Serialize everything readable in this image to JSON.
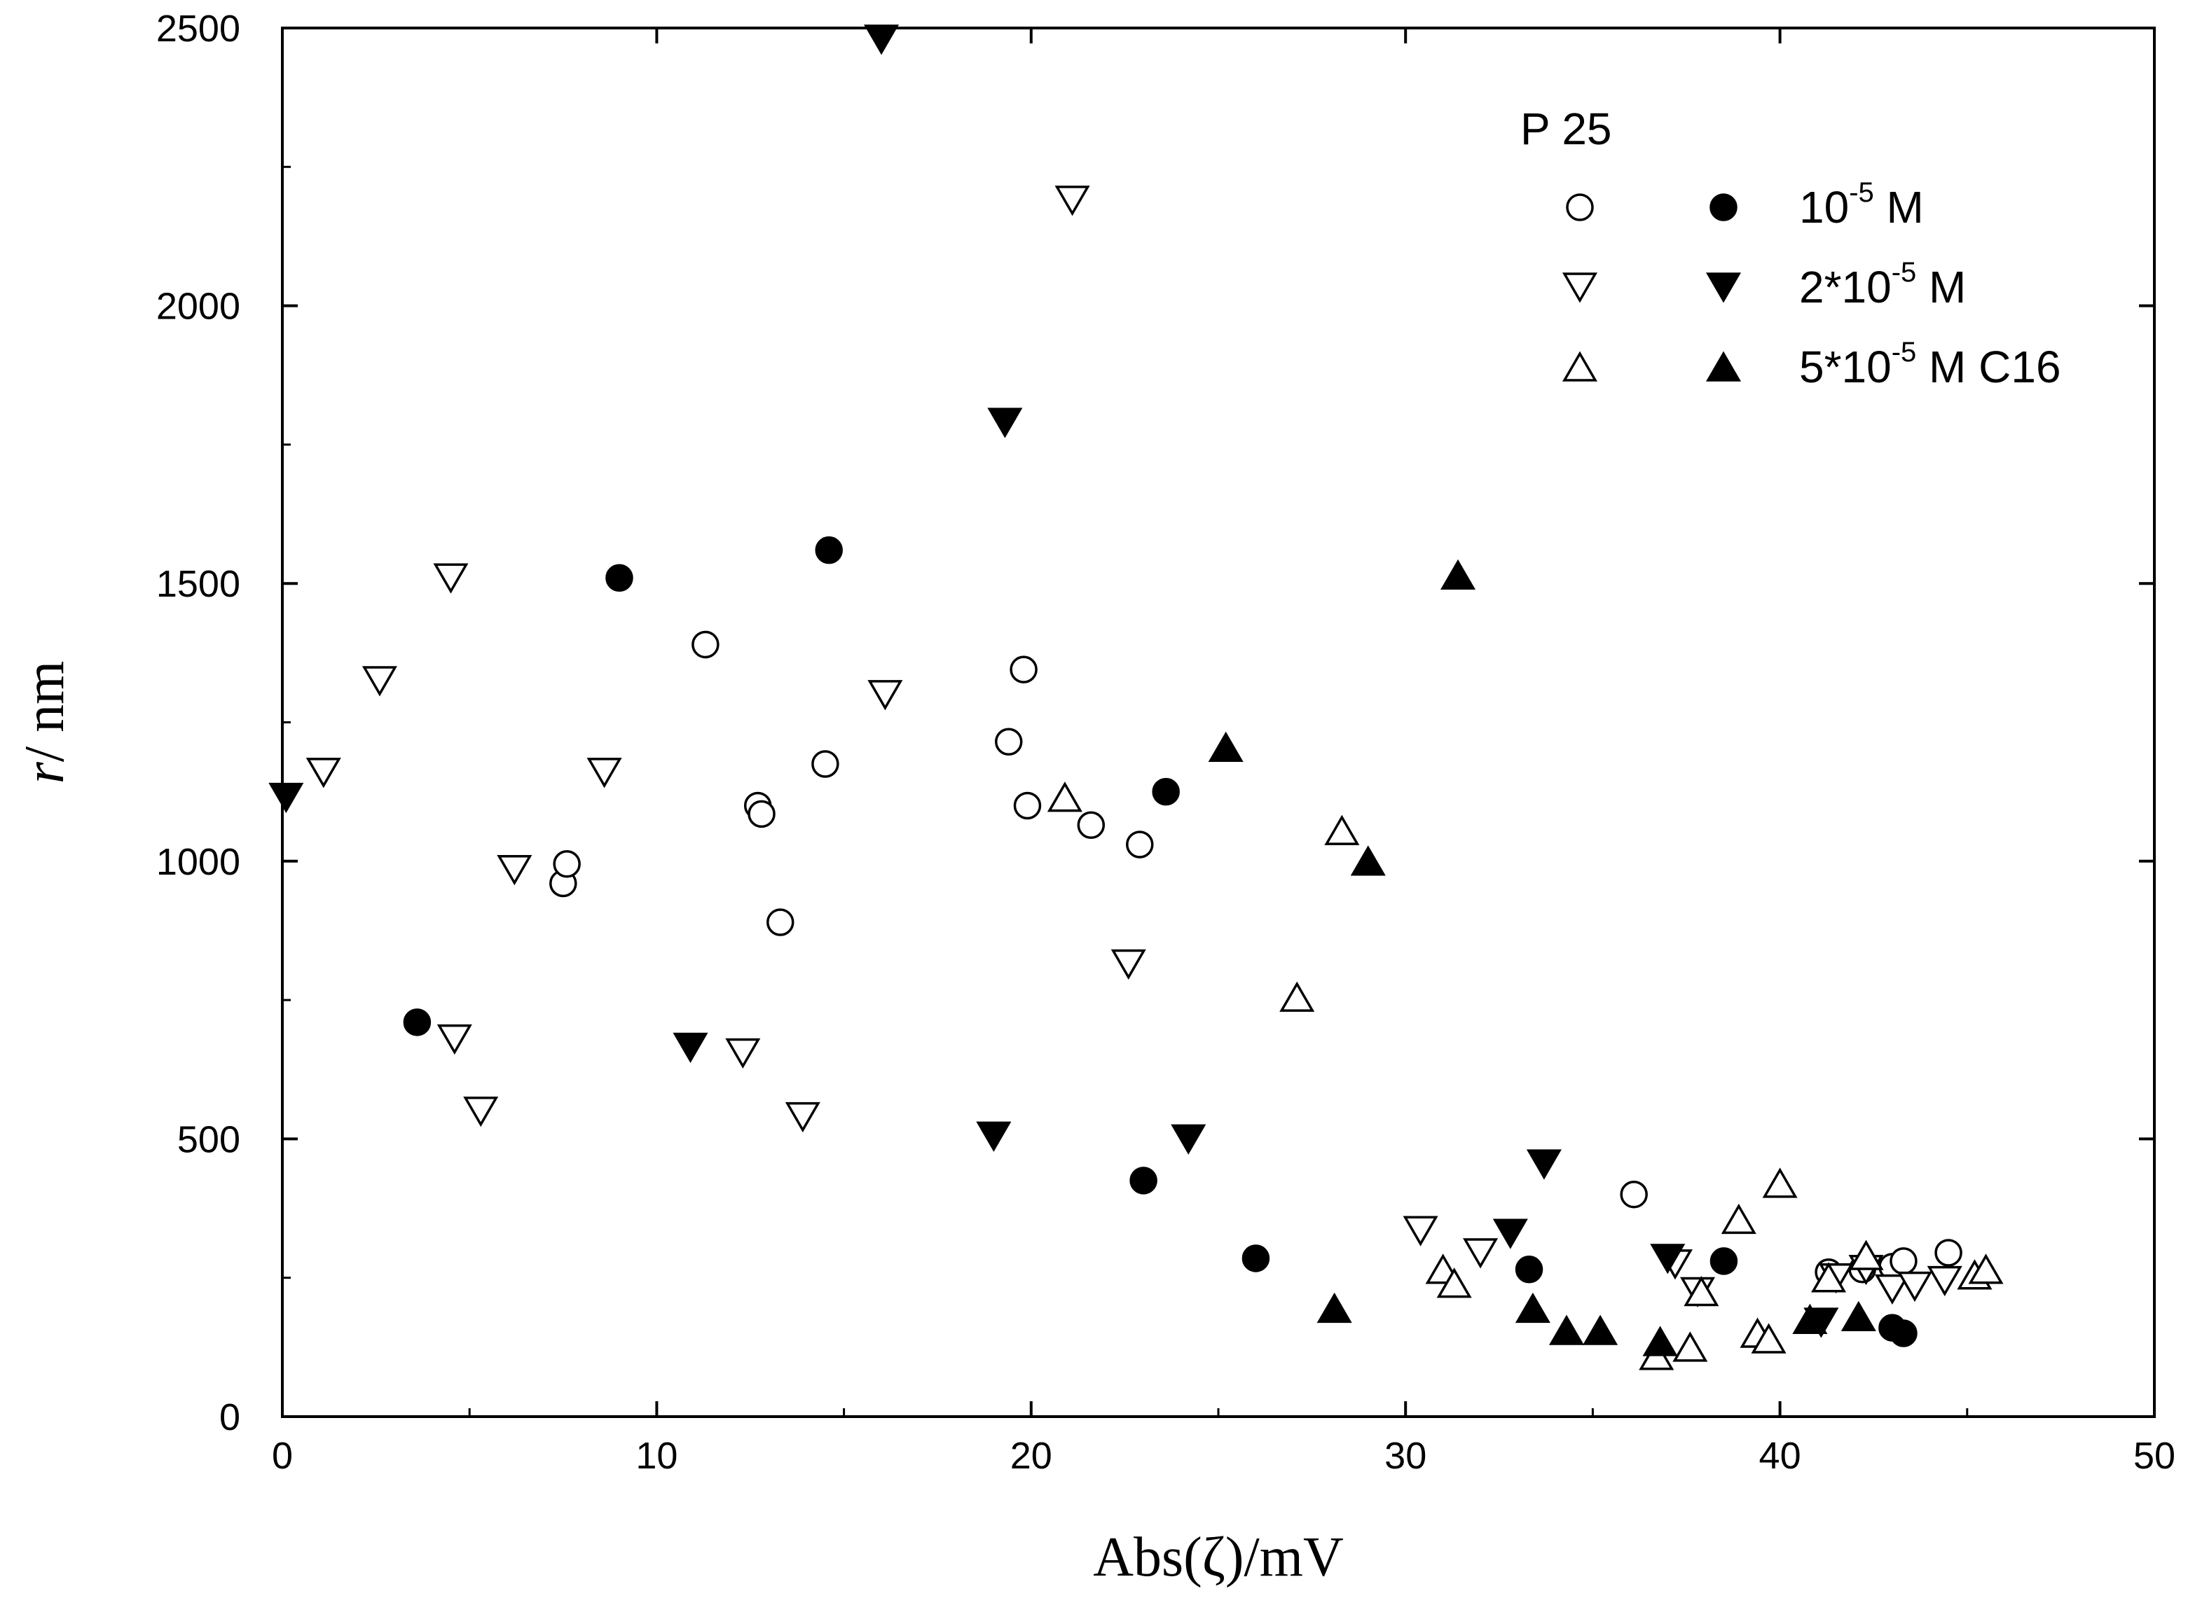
{
  "chart_data": {
    "type": "scatter",
    "title": "",
    "xlabel": "Abs(ζ)/mV",
    "ylabel_italic": "r",
    "ylabel_rest": "/ nm",
    "xlim": [
      0,
      50
    ],
    "ylim": [
      0,
      2500
    ],
    "xticks": [
      0,
      10,
      20,
      30,
      40,
      50
    ],
    "yticks": [
      0,
      500,
      1000,
      1500,
      2000,
      2500
    ],
    "grid": false,
    "legend": {
      "title": "P 25",
      "placement": "top-right",
      "entries": [
        {
          "label_base": "10",
          "label_sup": "-5",
          "label_tail": " M"
        },
        {
          "label_base": "2*10",
          "label_sup": "-5",
          "label_tail": " M"
        },
        {
          "label_base": "5*10",
          "label_sup": "-5",
          "label_tail": " M C16"
        }
      ]
    },
    "series": [
      {
        "name": "10^-5 M open",
        "marker": "circle",
        "filled": false,
        "points": [
          [
            7.5,
            960
          ],
          [
            7.6,
            995
          ],
          [
            11.3,
            1390
          ],
          [
            12.7,
            1100
          ],
          [
            12.8,
            1085
          ],
          [
            13.3,
            890
          ],
          [
            14.5,
            1175
          ],
          [
            19.4,
            1215
          ],
          [
            19.8,
            1345
          ],
          [
            19.9,
            1100
          ],
          [
            21.6,
            1065
          ],
          [
            22.9,
            1030
          ],
          [
            36.1,
            400
          ],
          [
            41.3,
            260
          ],
          [
            42.2,
            265
          ],
          [
            43.0,
            270
          ],
          [
            43.3,
            280
          ],
          [
            44.5,
            295
          ]
        ]
      },
      {
        "name": "10^-5 M filled",
        "marker": "circle",
        "filled": true,
        "points": [
          [
            3.6,
            710
          ],
          [
            9.0,
            1510
          ],
          [
            14.6,
            1560
          ],
          [
            23.0,
            425
          ],
          [
            23.6,
            1125
          ],
          [
            26.0,
            285
          ],
          [
            33.3,
            265
          ],
          [
            38.5,
            280
          ],
          [
            43.0,
            160
          ],
          [
            43.3,
            150
          ]
        ]
      },
      {
        "name": "2*10^-5 M open",
        "marker": "triangle-down",
        "filled": false,
        "points": [
          [
            1.1,
            1160
          ],
          [
            2.6,
            1325
          ],
          [
            4.5,
            1510
          ],
          [
            4.6,
            680
          ],
          [
            5.3,
            550
          ],
          [
            6.2,
            985
          ],
          [
            8.6,
            1160
          ],
          [
            12.3,
            655
          ],
          [
            13.9,
            540
          ],
          [
            16.1,
            1300
          ],
          [
            21.1,
            2190
          ],
          [
            22.6,
            815
          ],
          [
            30.4,
            335
          ],
          [
            32.0,
            295
          ],
          [
            37.2,
            275
          ],
          [
            37.8,
            225
          ],
          [
            41.5,
            250
          ],
          [
            42.3,
            265
          ],
          [
            43.0,
            230
          ],
          [
            43.6,
            235
          ],
          [
            44.4,
            245
          ]
        ]
      },
      {
        "name": "2*10^-5 M filled",
        "marker": "triangle-down",
        "filled": true,
        "points": [
          [
            0.1,
            1115
          ],
          [
            10.9,
            665
          ],
          [
            16.0,
            2480
          ],
          [
            19.0,
            505
          ],
          [
            19.3,
            1790
          ],
          [
            24.2,
            500
          ],
          [
            32.8,
            330
          ],
          [
            33.7,
            455
          ],
          [
            37.0,
            285
          ],
          [
            41.1,
            170
          ]
        ]
      },
      {
        "name": "5*10^-5 M C16 open",
        "marker": "triangle-up",
        "filled": false,
        "points": [
          [
            20.9,
            1115
          ],
          [
            27.1,
            755
          ],
          [
            28.3,
            1055
          ],
          [
            31.0,
            265
          ],
          [
            31.3,
            240
          ],
          [
            36.7,
            110
          ],
          [
            37.6,
            125
          ],
          [
            37.9,
            225
          ],
          [
            38.9,
            355
          ],
          [
            39.4,
            150
          ],
          [
            39.7,
            140
          ],
          [
            40.0,
            420
          ],
          [
            41.3,
            250
          ],
          [
            42.3,
            290
          ],
          [
            45.2,
            255
          ],
          [
            45.5,
            265
          ]
        ]
      },
      {
        "name": "5*10^-5 M C16 filled",
        "marker": "triangle-up",
        "filled": true,
        "points": [
          [
            25.2,
            1205
          ],
          [
            28.1,
            195
          ],
          [
            29.0,
            1000
          ],
          [
            31.4,
            1515
          ],
          [
            33.4,
            195
          ],
          [
            34.3,
            155
          ],
          [
            35.2,
            155
          ],
          [
            36.8,
            135
          ],
          [
            40.8,
            175
          ],
          [
            42.1,
            180
          ]
        ]
      }
    ]
  }
}
